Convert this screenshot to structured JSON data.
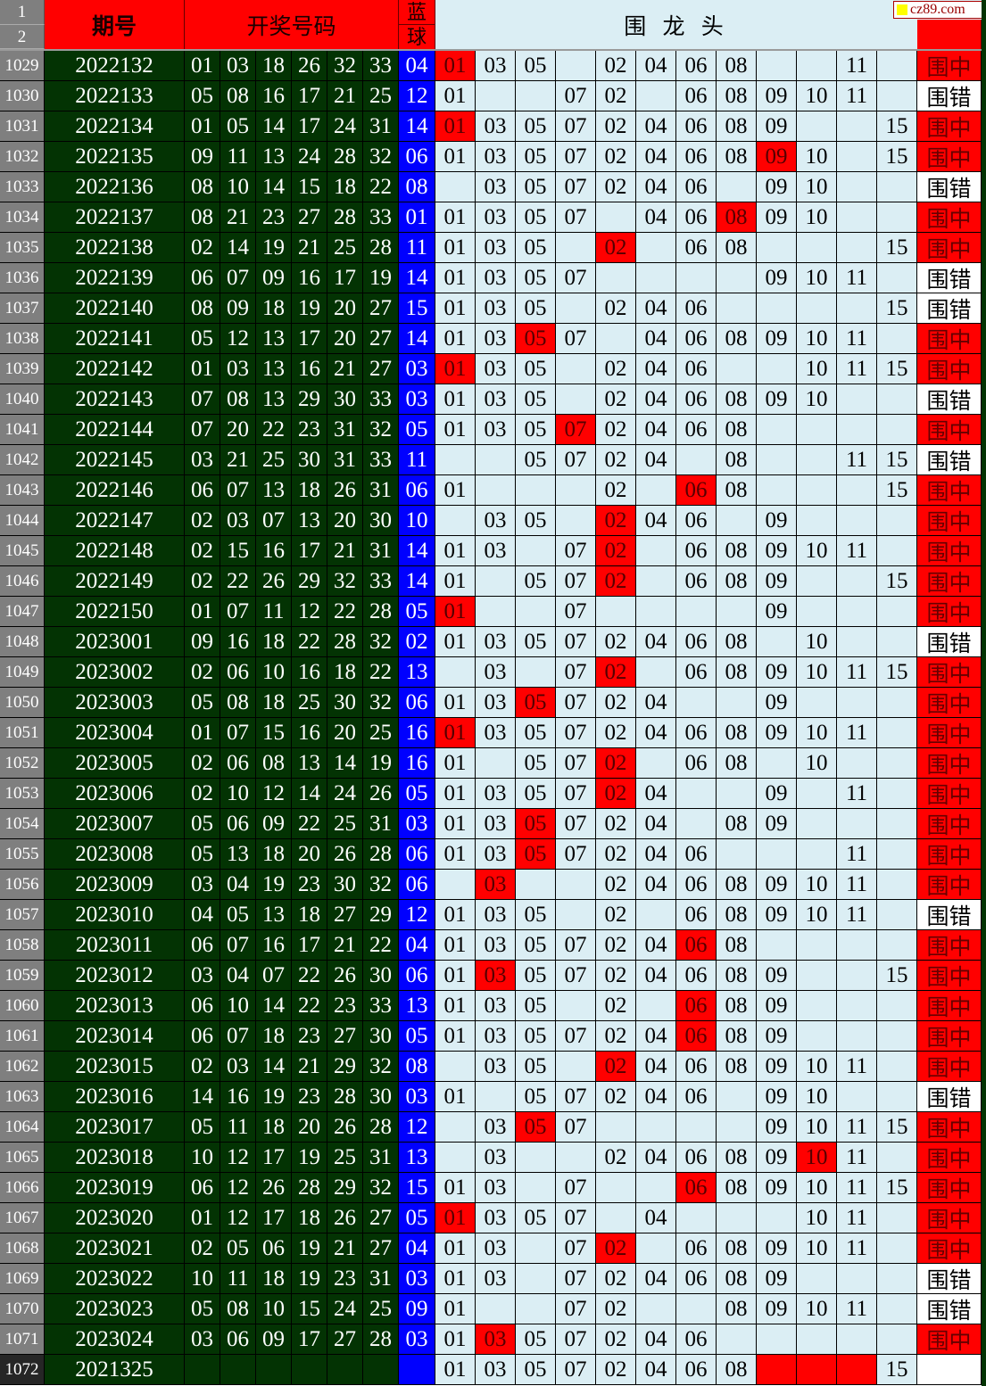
{
  "header": {
    "row1": "1",
    "row2": "2",
    "period": "期号",
    "numbers": "开奖号码",
    "blue1": "蓝",
    "blue2": "球",
    "picks": "围 龙 头",
    "watermark": "cz89.com"
  },
  "colors": {
    "red": "#ff0000",
    "green": "#033303",
    "blue": "#0000ff",
    "pick_bg": "#dbeef4"
  },
  "rows": [
    {
      "n": "1029",
      "period": "2022132",
      "reds": [
        "01",
        "03",
        "18",
        "26",
        "32",
        "33"
      ],
      "blue": "04",
      "picks": [
        "01",
        "03",
        "05",
        "",
        "02",
        "04",
        "06",
        "08",
        "",
        "",
        "11",
        ""
      ],
      "hits": [
        0
      ],
      "result": "围中"
    },
    {
      "n": "1030",
      "period": "2022133",
      "reds": [
        "05",
        "08",
        "16",
        "17",
        "21",
        "25"
      ],
      "blue": "12",
      "picks": [
        "01",
        "",
        "",
        "07",
        "02",
        "",
        "06",
        "08",
        "09",
        "10",
        "11",
        ""
      ],
      "hits": [],
      "result": "围错"
    },
    {
      "n": "1031",
      "period": "2022134",
      "reds": [
        "01",
        "05",
        "14",
        "17",
        "24",
        "31"
      ],
      "blue": "14",
      "picks": [
        "01",
        "03",
        "05",
        "07",
        "02",
        "04",
        "06",
        "08",
        "09",
        "",
        "",
        "15"
      ],
      "hits": [
        0
      ],
      "result": "围中"
    },
    {
      "n": "1032",
      "period": "2022135",
      "reds": [
        "09",
        "11",
        "13",
        "24",
        "28",
        "32"
      ],
      "blue": "06",
      "picks": [
        "01",
        "03",
        "05",
        "07",
        "02",
        "04",
        "06",
        "08",
        "09",
        "10",
        "",
        "15"
      ],
      "hits": [
        8
      ],
      "result": "围中"
    },
    {
      "n": "1033",
      "period": "2022136",
      "reds": [
        "08",
        "10",
        "14",
        "15",
        "18",
        "22"
      ],
      "blue": "08",
      "picks": [
        "",
        "03",
        "05",
        "07",
        "02",
        "04",
        "06",
        "",
        "09",
        "10",
        "",
        ""
      ],
      "hits": [],
      "result": "围错"
    },
    {
      "n": "1034",
      "period": "2022137",
      "reds": [
        "08",
        "21",
        "23",
        "27",
        "28",
        "33"
      ],
      "blue": "01",
      "picks": [
        "01",
        "03",
        "05",
        "07",
        "",
        "04",
        "06",
        "08",
        "09",
        "10",
        "",
        ""
      ],
      "hits": [
        7
      ],
      "result": "围中"
    },
    {
      "n": "1035",
      "period": "2022138",
      "reds": [
        "02",
        "14",
        "19",
        "21",
        "25",
        "28"
      ],
      "blue": "11",
      "picks": [
        "01",
        "03",
        "05",
        "",
        "02",
        "",
        "06",
        "08",
        "",
        "",
        "",
        "15"
      ],
      "hits": [
        4
      ],
      "result": "围中"
    },
    {
      "n": "1036",
      "period": "2022139",
      "reds": [
        "06",
        "07",
        "09",
        "16",
        "17",
        "19"
      ],
      "blue": "14",
      "picks": [
        "01",
        "03",
        "05",
        "07",
        "",
        "",
        "",
        "",
        "09",
        "10",
        "11",
        ""
      ],
      "hits": [],
      "result": "围错"
    },
    {
      "n": "1037",
      "period": "2022140",
      "reds": [
        "08",
        "09",
        "18",
        "19",
        "20",
        "27"
      ],
      "blue": "15",
      "picks": [
        "01",
        "03",
        "05",
        "",
        "02",
        "04",
        "06",
        "",
        "",
        "",
        "",
        "15"
      ],
      "hits": [],
      "result": "围错"
    },
    {
      "n": "1038",
      "period": "2022141",
      "reds": [
        "05",
        "12",
        "13",
        "17",
        "20",
        "27"
      ],
      "blue": "14",
      "picks": [
        "01",
        "03",
        "05",
        "07",
        "",
        "04",
        "06",
        "08",
        "09",
        "10",
        "11",
        ""
      ],
      "hits": [
        2
      ],
      "result": "围中"
    },
    {
      "n": "1039",
      "period": "2022142",
      "reds": [
        "01",
        "03",
        "13",
        "16",
        "21",
        "27"
      ],
      "blue": "03",
      "picks": [
        "01",
        "03",
        "05",
        "",
        "02",
        "04",
        "06",
        "",
        "",
        "10",
        "11",
        "15"
      ],
      "hits": [
        0
      ],
      "result": "围中"
    },
    {
      "n": "1040",
      "period": "2022143",
      "reds": [
        "07",
        "08",
        "13",
        "29",
        "30",
        "33"
      ],
      "blue": "03",
      "picks": [
        "01",
        "03",
        "05",
        "",
        "02",
        "04",
        "06",
        "08",
        "09",
        "10",
        "",
        ""
      ],
      "hits": [],
      "result": "围错"
    },
    {
      "n": "1041",
      "period": "2022144",
      "reds": [
        "07",
        "20",
        "22",
        "23",
        "31",
        "32"
      ],
      "blue": "05",
      "picks": [
        "01",
        "03",
        "05",
        "07",
        "02",
        "04",
        "06",
        "08",
        "",
        "",
        "",
        ""
      ],
      "hits": [
        3
      ],
      "result": "围中"
    },
    {
      "n": "1042",
      "period": "2022145",
      "reds": [
        "03",
        "21",
        "25",
        "30",
        "31",
        "33"
      ],
      "blue": "11",
      "picks": [
        "",
        "",
        "05",
        "07",
        "02",
        "04",
        "",
        "08",
        "",
        "",
        "11",
        "15"
      ],
      "hits": [],
      "result": "围错"
    },
    {
      "n": "1043",
      "period": "2022146",
      "reds": [
        "06",
        "07",
        "13",
        "18",
        "26",
        "31"
      ],
      "blue": "06",
      "picks": [
        "01",
        "",
        "",
        "",
        "02",
        "",
        "06",
        "08",
        "",
        "",
        "",
        "15"
      ],
      "hits": [
        6
      ],
      "result": "围中"
    },
    {
      "n": "1044",
      "period": "2022147",
      "reds": [
        "02",
        "03",
        "07",
        "13",
        "20",
        "30"
      ],
      "blue": "10",
      "picks": [
        "",
        "03",
        "05",
        "",
        "02",
        "04",
        "06",
        "",
        "09",
        "",
        "",
        ""
      ],
      "hits": [
        4
      ],
      "result": "围中"
    },
    {
      "n": "1045",
      "period": "2022148",
      "reds": [
        "02",
        "15",
        "16",
        "17",
        "21",
        "31"
      ],
      "blue": "14",
      "picks": [
        "01",
        "03",
        "",
        "07",
        "02",
        "",
        "06",
        "08",
        "09",
        "10",
        "11",
        ""
      ],
      "hits": [
        4
      ],
      "result": "围中"
    },
    {
      "n": "1046",
      "period": "2022149",
      "reds": [
        "02",
        "22",
        "26",
        "29",
        "32",
        "33"
      ],
      "blue": "14",
      "picks": [
        "01",
        "",
        "05",
        "07",
        "02",
        "",
        "06",
        "08",
        "09",
        "",
        "",
        "15"
      ],
      "hits": [
        4
      ],
      "result": "围中"
    },
    {
      "n": "1047",
      "period": "2022150",
      "reds": [
        "01",
        "07",
        "11",
        "12",
        "22",
        "28"
      ],
      "blue": "05",
      "picks": [
        "01",
        "",
        "",
        "07",
        "",
        "",
        "",
        "",
        "09",
        "",
        "",
        ""
      ],
      "hits": [
        0
      ],
      "result": "围中"
    },
    {
      "n": "1048",
      "period": "2023001",
      "reds": [
        "09",
        "16",
        "18",
        "22",
        "28",
        "32"
      ],
      "blue": "02",
      "picks": [
        "01",
        "03",
        "05",
        "07",
        "02",
        "04",
        "06",
        "08",
        "",
        "10",
        "",
        ""
      ],
      "hits": [],
      "result": "围错"
    },
    {
      "n": "1049",
      "period": "2023002",
      "reds": [
        "02",
        "06",
        "10",
        "16",
        "18",
        "22"
      ],
      "blue": "13",
      "picks": [
        "",
        "03",
        "",
        "07",
        "02",
        "",
        "06",
        "08",
        "09",
        "10",
        "11",
        "15"
      ],
      "hits": [
        4
      ],
      "result": "围中"
    },
    {
      "n": "1050",
      "period": "2023003",
      "reds": [
        "05",
        "08",
        "18",
        "25",
        "30",
        "32"
      ],
      "blue": "06",
      "picks": [
        "01",
        "03",
        "05",
        "07",
        "02",
        "04",
        "",
        "",
        "09",
        "",
        "",
        ""
      ],
      "hits": [
        2
      ],
      "result": "围中"
    },
    {
      "n": "1051",
      "period": "2023004",
      "reds": [
        "01",
        "07",
        "15",
        "16",
        "20",
        "25"
      ],
      "blue": "16",
      "picks": [
        "01",
        "03",
        "05",
        "07",
        "02",
        "04",
        "06",
        "08",
        "09",
        "10",
        "11",
        ""
      ],
      "hits": [
        0
      ],
      "result": "围中"
    },
    {
      "n": "1052",
      "period": "2023005",
      "reds": [
        "02",
        "06",
        "08",
        "13",
        "14",
        "19"
      ],
      "blue": "16",
      "picks": [
        "01",
        "",
        "05",
        "07",
        "02",
        "",
        "06",
        "08",
        "",
        "10",
        "",
        ""
      ],
      "hits": [
        4
      ],
      "result": "围中"
    },
    {
      "n": "1053",
      "period": "2023006",
      "reds": [
        "02",
        "10",
        "12",
        "14",
        "24",
        "26"
      ],
      "blue": "05",
      "picks": [
        "01",
        "03",
        "05",
        "07",
        "02",
        "04",
        "",
        "",
        "09",
        "",
        "11",
        ""
      ],
      "hits": [
        4
      ],
      "result": "围中"
    },
    {
      "n": "1054",
      "period": "2023007",
      "reds": [
        "05",
        "06",
        "09",
        "22",
        "25",
        "31"
      ],
      "blue": "03",
      "picks": [
        "01",
        "03",
        "05",
        "07",
        "02",
        "04",
        "",
        "08",
        "09",
        "",
        "",
        ""
      ],
      "hits": [
        2
      ],
      "result": "围中"
    },
    {
      "n": "1055",
      "period": "2023008",
      "reds": [
        "05",
        "13",
        "18",
        "20",
        "26",
        "28"
      ],
      "blue": "06",
      "picks": [
        "01",
        "03",
        "05",
        "07",
        "02",
        "04",
        "06",
        "",
        "",
        "",
        "11",
        ""
      ],
      "hits": [
        2
      ],
      "result": "围中"
    },
    {
      "n": "1056",
      "period": "2023009",
      "reds": [
        "03",
        "04",
        "19",
        "23",
        "30",
        "32"
      ],
      "blue": "06",
      "picks": [
        "",
        "03",
        "",
        "",
        "02",
        "04",
        "06",
        "08",
        "09",
        "10",
        "11",
        ""
      ],
      "hits": [
        1
      ],
      "result": "围中"
    },
    {
      "n": "1057",
      "period": "2023010",
      "reds": [
        "04",
        "05",
        "13",
        "18",
        "27",
        "29"
      ],
      "blue": "12",
      "picks": [
        "01",
        "03",
        "05",
        "",
        "02",
        "",
        "06",
        "08",
        "09",
        "10",
        "11",
        ""
      ],
      "hits": [],
      "result": "围错"
    },
    {
      "n": "1058",
      "period": "2023011",
      "reds": [
        "06",
        "07",
        "16",
        "17",
        "21",
        "22"
      ],
      "blue": "04",
      "picks": [
        "01",
        "03",
        "05",
        "07",
        "02",
        "04",
        "06",
        "08",
        "",
        "",
        "",
        ""
      ],
      "hits": [
        6
      ],
      "result": "围中"
    },
    {
      "n": "1059",
      "period": "2023012",
      "reds": [
        "03",
        "04",
        "07",
        "22",
        "26",
        "30"
      ],
      "blue": "06",
      "picks": [
        "01",
        "03",
        "05",
        "07",
        "02",
        "04",
        "06",
        "08",
        "09",
        "",
        "",
        "15"
      ],
      "hits": [
        1
      ],
      "result": "围中"
    },
    {
      "n": "1060",
      "period": "2023013",
      "reds": [
        "06",
        "10",
        "14",
        "22",
        "23",
        "33"
      ],
      "blue": "13",
      "picks": [
        "01",
        "03",
        "05",
        "",
        "02",
        "",
        "06",
        "08",
        "09",
        "",
        "",
        ""
      ],
      "hits": [
        6
      ],
      "result": "围中"
    },
    {
      "n": "1061",
      "period": "2023014",
      "reds": [
        "06",
        "07",
        "18",
        "23",
        "27",
        "30"
      ],
      "blue": "05",
      "picks": [
        "01",
        "03",
        "05",
        "07",
        "02",
        "04",
        "06",
        "08",
        "09",
        "",
        "",
        ""
      ],
      "hits": [
        6
      ],
      "result": "围中"
    },
    {
      "n": "1062",
      "period": "2023015",
      "reds": [
        "02",
        "03",
        "14",
        "21",
        "29",
        "32"
      ],
      "blue": "08",
      "picks": [
        "",
        "03",
        "05",
        "",
        "02",
        "04",
        "06",
        "08",
        "09",
        "10",
        "11",
        ""
      ],
      "hits": [
        4
      ],
      "result": "围中"
    },
    {
      "n": "1063",
      "period": "2023016",
      "reds": [
        "14",
        "16",
        "19",
        "23",
        "28",
        "30"
      ],
      "blue": "03",
      "picks": [
        "01",
        "",
        "05",
        "07",
        "02",
        "04",
        "06",
        "",
        "09",
        "10",
        "",
        ""
      ],
      "hits": [],
      "result": "围错"
    },
    {
      "n": "1064",
      "period": "2023017",
      "reds": [
        "05",
        "11",
        "18",
        "20",
        "26",
        "28"
      ],
      "blue": "12",
      "picks": [
        "",
        "03",
        "05",
        "07",
        "",
        "",
        "",
        "",
        "09",
        "10",
        "11",
        "15"
      ],
      "hits": [
        2
      ],
      "result": "围中"
    },
    {
      "n": "1065",
      "period": "2023018",
      "reds": [
        "10",
        "12",
        "17",
        "19",
        "25",
        "31"
      ],
      "blue": "13",
      "picks": [
        "",
        "03",
        "",
        "",
        "02",
        "04",
        "06",
        "08",
        "09",
        "10",
        "11",
        ""
      ],
      "hits": [
        9
      ],
      "result": "围中"
    },
    {
      "n": "1066",
      "period": "2023019",
      "reds": [
        "06",
        "12",
        "26",
        "28",
        "29",
        "32"
      ],
      "blue": "15",
      "picks": [
        "01",
        "03",
        "",
        "07",
        "",
        "",
        "06",
        "08",
        "09",
        "10",
        "11",
        "15"
      ],
      "hits": [
        6
      ],
      "result": "围中"
    },
    {
      "n": "1067",
      "period": "2023020",
      "reds": [
        "01",
        "12",
        "17",
        "18",
        "26",
        "27"
      ],
      "blue": "05",
      "picks": [
        "01",
        "03",
        "05",
        "07",
        "",
        "04",
        "",
        "",
        "",
        "10",
        "11",
        ""
      ],
      "hits": [
        0
      ],
      "result": "围中"
    },
    {
      "n": "1068",
      "period": "2023021",
      "reds": [
        "02",
        "05",
        "06",
        "19",
        "21",
        "27"
      ],
      "blue": "04",
      "picks": [
        "01",
        "03",
        "",
        "07",
        "02",
        "",
        "06",
        "08",
        "09",
        "10",
        "11",
        ""
      ],
      "hits": [
        4
      ],
      "result": "围中"
    },
    {
      "n": "1069",
      "period": "2023022",
      "reds": [
        "10",
        "11",
        "18",
        "19",
        "23",
        "31"
      ],
      "blue": "03",
      "picks": [
        "01",
        "03",
        "",
        "07",
        "02",
        "04",
        "06",
        "08",
        "09",
        "",
        "",
        ""
      ],
      "hits": [],
      "result": "围错"
    },
    {
      "n": "1070",
      "period": "2023023",
      "reds": [
        "05",
        "08",
        "10",
        "15",
        "24",
        "25"
      ],
      "blue": "09",
      "picks": [
        "01",
        "",
        "",
        "07",
        "02",
        "",
        "",
        "08",
        "09",
        "10",
        "11",
        ""
      ],
      "hits": [],
      "result": "围错"
    },
    {
      "n": "1071",
      "period": "2023024",
      "reds": [
        "03",
        "06",
        "09",
        "17",
        "27",
        "28"
      ],
      "blue": "03",
      "picks": [
        "01",
        "03",
        "05",
        "07",
        "02",
        "04",
        "06",
        "",
        "",
        "",
        "",
        ""
      ],
      "hits": [
        1
      ],
      "result": "围中"
    },
    {
      "n": "1072",
      "period": "2021325",
      "reds": [
        "",
        "",
        "",
        "",
        "",
        ""
      ],
      "blue": "",
      "picks": [
        "01",
        "03",
        "05",
        "07",
        "02",
        "04",
        "06",
        "08",
        "",
        "",
        "",
        "15"
      ],
      "hits": [
        8,
        9,
        10
      ],
      "result": "",
      "current": true
    }
  ]
}
